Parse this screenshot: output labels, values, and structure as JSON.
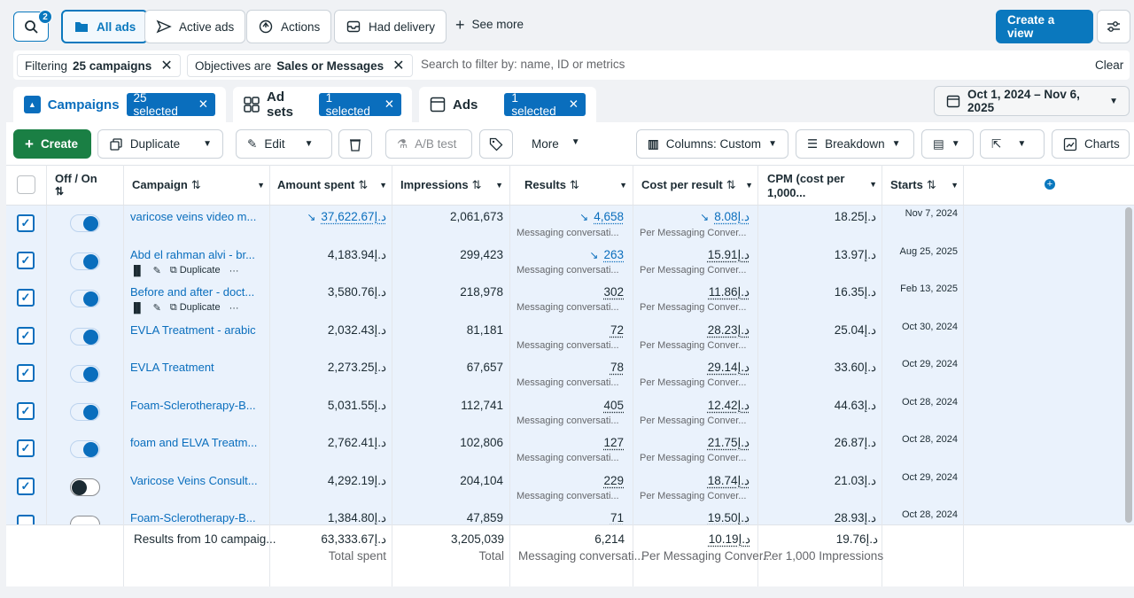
{
  "toolbar": {
    "search_badge": "2",
    "all_ads": "All ads",
    "active_ads": "Active ads",
    "actions": "Actions",
    "had_delivery": "Had delivery",
    "see_more": "See more",
    "create_view": "Create a view"
  },
  "filters": {
    "chip1_prefix": "Filtering",
    "chip1_value": "25 campaigns",
    "chip2_prefix": "Objectives are",
    "chip2_value": "Sales or Messages",
    "search_placeholder": "Search to filter by: name, ID or metrics",
    "clear": "Clear"
  },
  "tabs": {
    "campaigns": "Campaigns",
    "campaigns_selected": "25 selected",
    "adsets": "Ad sets",
    "adsets_selected": "1 selected",
    "ads": "Ads",
    "ads_selected": "1 selected",
    "date_range": "Oct 1, 2024 – Nov 6, 2025"
  },
  "actions_bar": {
    "create": "Create",
    "duplicate": "Duplicate",
    "edit": "Edit",
    "ab_test": "A/B test",
    "more": "More",
    "columns": "Columns: Custom",
    "breakdown": "Breakdown",
    "charts": "Charts"
  },
  "headers": {
    "off_on": "Off / On",
    "campaign": "Campaign",
    "amount_spent": "Amount spent",
    "impressions": "Impressions",
    "results": "Results",
    "cost_per_result": "Cost per result",
    "cpm": "CPM (cost per 1,000...",
    "starts": "Starts"
  },
  "row_sub": {
    "results": "Messaging conversati...",
    "cost": "Per Messaging Conver...",
    "duplicate": "Duplicate"
  },
  "rows": [
    {
      "name": "varicose veins video m...",
      "spent": "37,622.67د.إ",
      "impr": "2,061,673",
      "results": "4,658",
      "cost": "8.08د.إ",
      "cpm": "18.25د.إ",
      "starts": "Nov 7, 2024",
      "on": true
    },
    {
      "name": "Abd el rahman alvi - br...",
      "spent": "4,183.94د.إ",
      "impr": "299,423",
      "results": "263",
      "cost": "15.91د.إ",
      "cpm": "13.97د.إ",
      "starts": "Aug 25, 2025",
      "on": true
    },
    {
      "name": "Before and after - doct...",
      "spent": "3,580.76د.إ",
      "impr": "218,978",
      "results": "302",
      "cost": "11.86د.إ",
      "cpm": "16.35د.إ",
      "starts": "Feb 13, 2025",
      "on": true
    },
    {
      "name": "EVLA Treatment - arabic",
      "spent": "2,032.43د.إ",
      "impr": "81,181",
      "results": "72",
      "cost": "28.23د.إ",
      "cpm": "25.04د.إ",
      "starts": "Oct 30, 2024",
      "on": true
    },
    {
      "name": "EVLA Treatment",
      "spent": "2,273.25د.إ",
      "impr": "67,657",
      "results": "78",
      "cost": "29.14د.إ",
      "cpm": "33.60د.إ",
      "starts": "Oct 29, 2024",
      "on": true
    },
    {
      "name": "Foam-Sclerotherapy-B...",
      "spent": "5,031.55د.إ",
      "impr": "112,741",
      "results": "405",
      "cost": "12.42د.إ",
      "cpm": "44.63د.إ",
      "starts": "Oct 28, 2024",
      "on": true
    },
    {
      "name": "foam and ELVA Treatm...",
      "spent": "2,762.41د.إ",
      "impr": "102,806",
      "results": "127",
      "cost": "21.75د.إ",
      "cpm": "26.87د.إ",
      "starts": "Oct 28, 2024",
      "on": true
    },
    {
      "name": "Varicose Veins Consult...",
      "spent": "4,292.19د.إ",
      "impr": "204,104",
      "results": "229",
      "cost": "18.74د.إ",
      "cpm": "21.03د.إ",
      "starts": "Oct 29, 2024",
      "on": false
    },
    {
      "name": "Foam-Sclerotherapy-B...",
      "spent": "1,384.80د.إ",
      "impr": "47,859",
      "results": "71",
      "cost": "19.50د.إ",
      "cpm": "28.93د.إ",
      "starts": "Oct 28, 2024",
      "on": false
    }
  ],
  "totals": {
    "label": "Results from 10 campaig...",
    "spent": "63,333.67د.إ",
    "spent_sub": "Total spent",
    "impr": "3,205,039",
    "impr_sub": "Total",
    "results": "6,214",
    "results_sub": "Messaging conversati...",
    "cost": "10.19د.إ",
    "cost_sub": "Per Messaging Conver...",
    "cpm": "19.76د.إ",
    "cpm_sub": "Per 1,000 Impressions"
  }
}
